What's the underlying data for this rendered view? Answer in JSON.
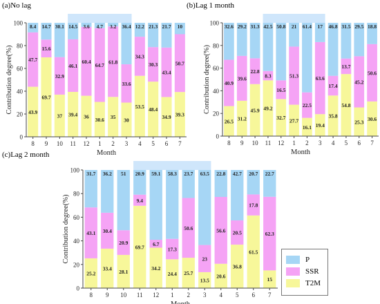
{
  "colors": {
    "P": "#a6d6f5",
    "SSR": "#f5a3f5",
    "T2M": "#f7f79a",
    "highlight": "#cfe6fb",
    "axis": "#555555"
  },
  "legend": {
    "items": [
      {
        "key": "P",
        "label": "P"
      },
      {
        "key": "SSR",
        "label": "SSR"
      },
      {
        "key": "T2M",
        "label": "T2M"
      }
    ]
  },
  "chart_data": [
    {
      "type": "bar",
      "stacked": true,
      "title": "(a)No lag",
      "xlabel": "Month",
      "ylabel": "Contribution degree(%)",
      "ylim": [
        0,
        100
      ],
      "yticks": [
        0,
        20,
        40,
        60,
        80,
        100
      ],
      "categories": [
        "8",
        "9",
        "10",
        "11",
        "12",
        "1",
        "2",
        "3",
        "4",
        "5",
        "6",
        "7"
      ],
      "highlight_range": [
        "11",
        "3"
      ],
      "series": [
        {
          "name": "T2M",
          "values": [
            43.9,
            69.7,
            37,
            39.4,
            36,
            30.6,
            35,
            30,
            53.5,
            48.4,
            34.9,
            39.3
          ]
        },
        {
          "name": "SSR",
          "values": [
            47.7,
            15.6,
            32.9,
            46.1,
            60.4,
            64.7,
            61.8,
            33.6,
            34.3,
            30.3,
            43.4,
            50.7
          ]
        },
        {
          "name": "P",
          "values": [
            8.4,
            14.7,
            30.1,
            14.5,
            3.6,
            4.7,
            3.2,
            36.4,
            12.2,
            21.3,
            21.7,
            10
          ]
        }
      ]
    },
    {
      "type": "bar",
      "stacked": true,
      "title": "(b)Lag 1 month",
      "xlabel": "Month",
      "ylabel": "Contribution degree(%)",
      "ylim": [
        0,
        100
      ],
      "yticks": [
        0,
        20,
        40,
        60,
        80,
        100
      ],
      "categories": [
        "8",
        "9",
        "10",
        "11",
        "12",
        "1",
        "2",
        "3",
        "4",
        "5",
        "6",
        "7"
      ],
      "highlight_range": [
        "11",
        "3"
      ],
      "series": [
        {
          "name": "T2M",
          "values": [
            26.5,
            31.2,
            45.9,
            49.2,
            32.7,
            27.7,
            16.1,
            19.4,
            35.8,
            54.8,
            25.3,
            30.6
          ]
        },
        {
          "name": "SSR",
          "values": [
            40.9,
            39.6,
            22.8,
            8.3,
            16.5,
            51.3,
            22.5,
            63.6,
            17.4,
            13.7,
            45.2,
            50.6
          ]
        },
        {
          "name": "P",
          "values": [
            32.6,
            29.2,
            31.3,
            42.5,
            50.8,
            21,
            61.4,
            17,
            46.8,
            31.5,
            29.5,
            18.8
          ]
        }
      ]
    },
    {
      "type": "bar",
      "stacked": true,
      "title": "(c)Lag 2 month",
      "xlabel": "Month",
      "ylabel": "Contribution degree(%)",
      "ylim": [
        0,
        100
      ],
      "yticks": [
        0,
        20,
        40,
        60,
        80,
        100
      ],
      "categories": [
        "8",
        "9",
        "10",
        "11",
        "12",
        "1",
        "2",
        "3",
        "4",
        "5",
        "6",
        "7"
      ],
      "highlight_range": [
        "11",
        "3"
      ],
      "series": [
        {
          "name": "T2M",
          "values": [
            25.2,
            33.4,
            28.1,
            69.7,
            34.2,
            24.4,
            25.7,
            13.5,
            20.6,
            36.8,
            61.5,
            15
          ]
        },
        {
          "name": "SSR",
          "values": [
            43.1,
            30.4,
            20.9,
            9.4,
            6.7,
            17.3,
            50.6,
            23,
            56.6,
            20.5,
            17.8,
            62.3
          ]
        },
        {
          "name": "P",
          "values": [
            31.7,
            36.2,
            51,
            20.9,
            59.1,
            58.3,
            23.7,
            63.5,
            22.8,
            42.7,
            20.7,
            22.7
          ]
        }
      ]
    }
  ]
}
